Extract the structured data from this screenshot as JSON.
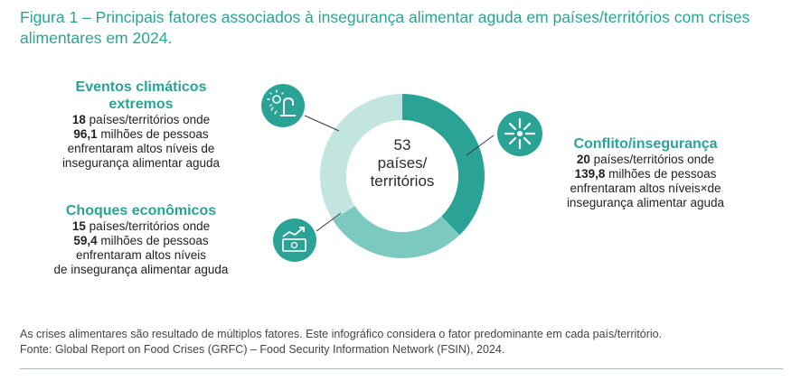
{
  "title": {
    "figure": "Figura 1",
    "text": " – Principais fatores associados à insegurança alimentar aguda em países/territórios com crises alimentares em 2024."
  },
  "chart_data": {
    "type": "pie",
    "categories": [
      "Conflito/insegurança",
      "Choques econômicos",
      "Eventos climáticos extremos"
    ],
    "values": [
      20,
      15,
      18
    ],
    "colors": [
      "#2aa396",
      "#7cc9bf",
      "#c3e5e0"
    ],
    "center": {
      "value": "53",
      "line1": "países/",
      "line2": "territórios"
    }
  },
  "blocks": {
    "climate": {
      "title_line1": "Eventos climáticos",
      "title_line2": "extremos",
      "count": "18",
      "line1_rest": " países/territórios onde",
      "millions": "96,1",
      "line2_rest": " milhões de pessoas",
      "line3": "enfrentaram altos níveis de",
      "line4": "insegurança alimentar aguda",
      "icon": "climate-sun-rain-icon"
    },
    "economic": {
      "title": "Choques econômicos",
      "count": "15",
      "line1_rest": " países/territórios onde",
      "millions": "59,4",
      "line2_rest": " milhões de pessoas",
      "line3": "enfrentaram altos níveis",
      "line4": "de insegurança alimentar aguda",
      "icon": "money-chart-icon"
    },
    "conflict": {
      "title": "Conflito/insegurança",
      "count": "20",
      "line1_rest": " países/territórios onde",
      "millions": "139,8",
      "line2_rest": " milhões de pessoas",
      "line3": "enfrentaram altos níveis",
      "line3_mark": "×",
      "line3_end": "de",
      "line4": "insegurança alimentar aguda",
      "icon": "explosion-icon"
    }
  },
  "notes": {
    "line1": "As crises alimentares são resultado de múltiplos fatores. Este infográfico considera o fator predominante em cada país/território.",
    "line2": "Fonte: Global Report on Food Crises (GRFC) – Food Security Information Network (FSIN), 2024."
  }
}
